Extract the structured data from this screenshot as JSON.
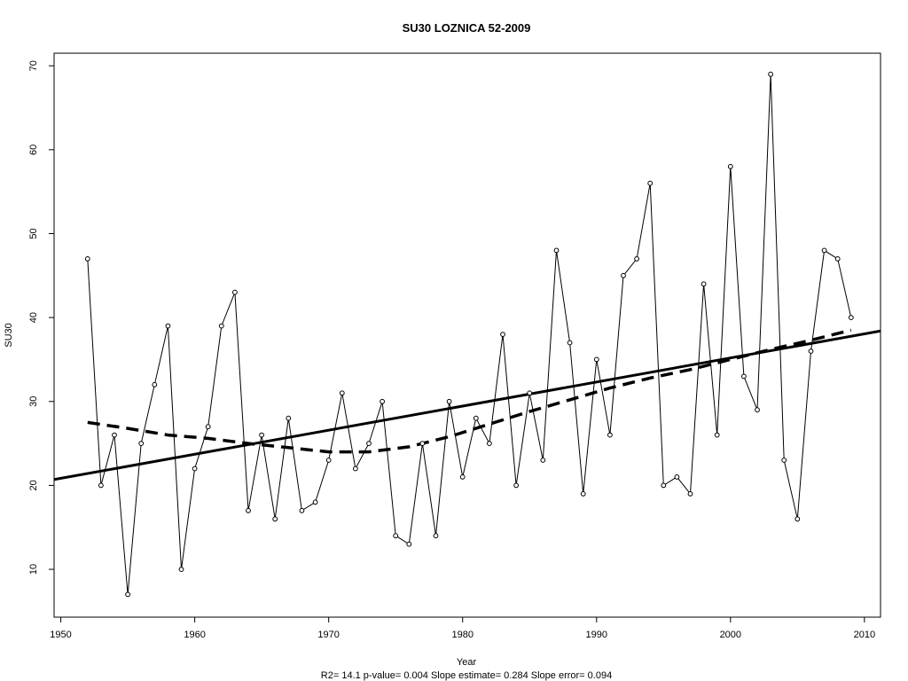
{
  "chart_data": {
    "type": "line",
    "title": "SU30   LOZNICA 52-2009",
    "xlabel": "Year",
    "ylabel": "SU30",
    "stats_text": "R2= 14.1  p-value= 0.004  Slope estimate= 0.284  Slope error= 0.094",
    "xlim": [
      1949.5,
      2011.2
    ],
    "ylim": [
      4.3,
      71.5
    ],
    "x_ticks": [
      1950,
      1960,
      1970,
      1980,
      1990,
      2000,
      2010
    ],
    "y_ticks": [
      10,
      20,
      30,
      40,
      50,
      60,
      70
    ],
    "grid": false,
    "series": [
      {
        "style": "points-and-lines",
        "x": [
          1952,
          1953,
          1954,
          1955,
          1956,
          1957,
          1958,
          1959,
          1960,
          1961,
          1962,
          1963,
          1964,
          1965,
          1966,
          1967,
          1968,
          1969,
          1970,
          1971,
          1972,
          1973,
          1974,
          1975,
          1976,
          1977,
          1978,
          1979,
          1980,
          1981,
          1982,
          1983,
          1984,
          1985,
          1986,
          1987,
          1988,
          1989,
          1990,
          1991,
          1992,
          1993,
          1994,
          1995,
          1996,
          1997,
          1998,
          1999,
          2000,
          2001,
          2002,
          2003,
          2004,
          2005,
          2006,
          2007,
          2008,
          2009
        ],
        "y": [
          47,
          20,
          26,
          7,
          25,
          32,
          39,
          10,
          22,
          27,
          39,
          43,
          17,
          26,
          16,
          28,
          17,
          18,
          23,
          31,
          22,
          25,
          30,
          14,
          13,
          25,
          14,
          30,
          21,
          28,
          25,
          38,
          20,
          31,
          23,
          48,
          37,
          19,
          35,
          26,
          45,
          47,
          56,
          20,
          21,
          19,
          44,
          26,
          58,
          33,
          29,
          69,
          23,
          16,
          36,
          48,
          47,
          40
        ]
      },
      {
        "style": "linear-trend",
        "x": [
          1949.5,
          2011.2
        ],
        "y": [
          20.7,
          38.4
        ]
      },
      {
        "style": "smooth-dashed",
        "x": [
          1952,
          1955,
          1958,
          1961,
          1964,
          1967,
          1970,
          1973,
          1976,
          1979,
          1982,
          1985,
          1988,
          1991,
          1994,
          1997,
          2000,
          2003,
          2006,
          2009
        ],
        "y": [
          27.5,
          26.8,
          26.0,
          25.6,
          25.0,
          24.5,
          24.0,
          24.0,
          24.6,
          25.8,
          27.3,
          28.8,
          30.2,
          31.6,
          32.8,
          33.8,
          35.0,
          36.2,
          37.3,
          38.5
        ]
      }
    ]
  }
}
